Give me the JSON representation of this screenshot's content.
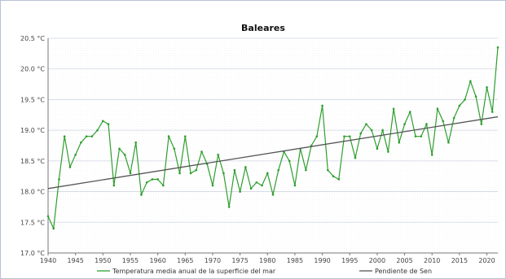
{
  "chart_data": {
    "type": "line",
    "title": "Baleares",
    "xlabel": "",
    "ylabel": "",
    "xlim": [
      1940,
      2022
    ],
    "ylim": [
      17.0,
      20.5
    ],
    "x_ticks": [
      1940,
      1945,
      1950,
      1955,
      1960,
      1965,
      1970,
      1975,
      1980,
      1985,
      1990,
      1995,
      2000,
      2005,
      2010,
      2015,
      2020
    ],
    "y_ticks": [
      {
        "value": 17.0,
        "label": "17.0 °C"
      },
      {
        "value": 17.5,
        "label": "17.5 °C"
      },
      {
        "value": 18.0,
        "label": "18.0 °C"
      },
      {
        "value": 18.5,
        "label": "18.5 °C"
      },
      {
        "value": 19.0,
        "label": "19.0 °C"
      },
      {
        "value": 19.5,
        "label": "19.5 °C"
      },
      {
        "value": 20.0,
        "label": "20.0 °C"
      },
      {
        "value": 20.5,
        "label": "20.5 °C"
      }
    ],
    "grid": {
      "x": false,
      "y": true
    },
    "legend_position": "bottom",
    "series": [
      {
        "name": "Temperatura media anual de la superficie del mar",
        "color": "#2e9e2e",
        "markers": true,
        "x": [
          1940,
          1941,
          1942,
          1943,
          1944,
          1945,
          1946,
          1947,
          1948,
          1949,
          1950,
          1951,
          1952,
          1953,
          1954,
          1955,
          1956,
          1957,
          1958,
          1959,
          1960,
          1961,
          1962,
          1963,
          1964,
          1965,
          1966,
          1967,
          1968,
          1969,
          1970,
          1971,
          1972,
          1973,
          1974,
          1975,
          1976,
          1977,
          1978,
          1979,
          1980,
          1981,
          1982,
          1983,
          1984,
          1985,
          1986,
          1987,
          1988,
          1989,
          1990,
          1991,
          1992,
          1993,
          1994,
          1995,
          1996,
          1997,
          1998,
          1999,
          2000,
          2001,
          2002,
          2003,
          2004,
          2005,
          2006,
          2007,
          2008,
          2009,
          2010,
          2011,
          2012,
          2013,
          2014,
          2015,
          2016,
          2017,
          2018,
          2019,
          2020,
          2021,
          2022
        ],
        "values": [
          17.6,
          17.4,
          18.2,
          18.9,
          18.4,
          18.6,
          18.8,
          18.9,
          18.9,
          19.0,
          19.15,
          19.1,
          18.1,
          18.7,
          18.6,
          18.3,
          18.8,
          17.95,
          18.15,
          18.2,
          18.2,
          18.1,
          18.9,
          18.7,
          18.3,
          18.9,
          18.3,
          18.35,
          18.65,
          18.45,
          18.1,
          18.6,
          18.3,
          17.75,
          18.35,
          18.0,
          18.4,
          18.05,
          18.15,
          18.1,
          18.3,
          17.95,
          18.35,
          18.65,
          18.5,
          18.1,
          18.7,
          18.35,
          18.75,
          18.9,
          19.4,
          18.35,
          18.25,
          18.2,
          18.9,
          18.9,
          18.55,
          18.95,
          19.1,
          19.0,
          18.7,
          19.0,
          18.65,
          19.35,
          18.8,
          19.1,
          19.3,
          18.9,
          18.9,
          19.1,
          18.6,
          19.35,
          19.15,
          18.8,
          19.2,
          19.4,
          19.5,
          19.8,
          19.55,
          19.1,
          19.7,
          19.3,
          20.35
        ]
      },
      {
        "name": "Pendiente de Sen",
        "color": "#555555",
        "markers": false,
        "x": [
          1940,
          2022
        ],
        "values": [
          18.05,
          19.22
        ]
      }
    ]
  }
}
